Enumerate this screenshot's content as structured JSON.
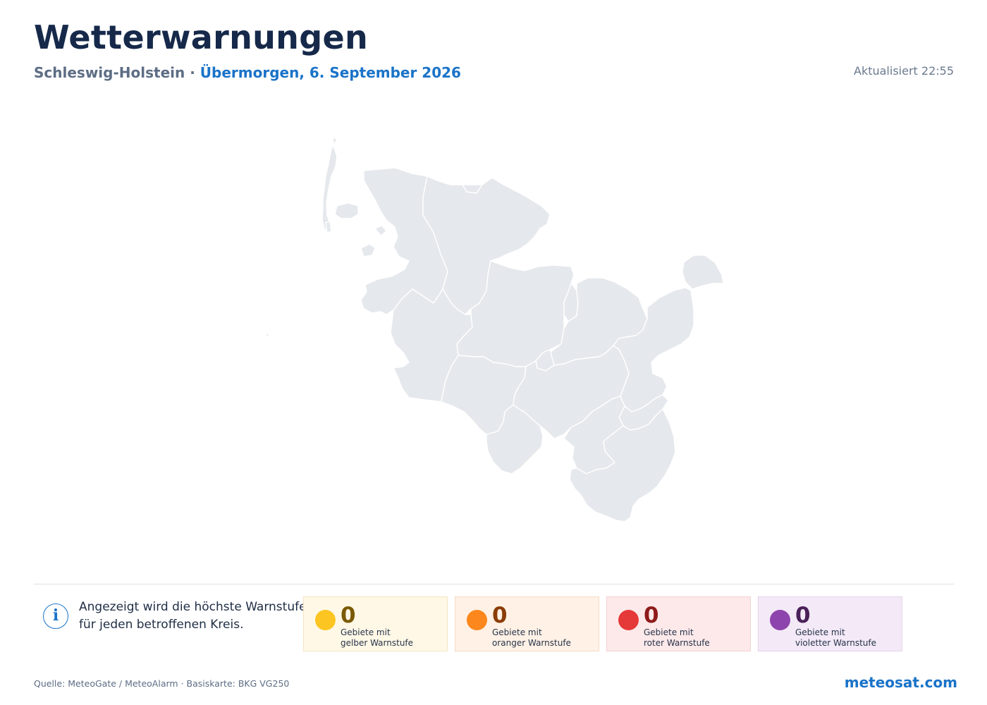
{
  "header": {
    "title": "Wetterwarnungen",
    "region": "Schleswig-Holstein",
    "separator": " · ",
    "date": "Übermorgen, 6. September 2026",
    "updated": "Aktualisiert 22:55"
  },
  "map": {
    "region_fill": "#e5e8ec",
    "border_color": "#ffffff"
  },
  "info": {
    "icon": "info-icon",
    "icon_glyph": "i",
    "line1": "Angezeigt wird die höchste Warnstufe",
    "line2": "für jeden betroffenen Kreis."
  },
  "legend": [
    {
      "level": "yellow",
      "color": "#fdc521",
      "count": "0",
      "label_line1": "Gebiete mit",
      "label_line2": "gelber Warnstufe"
    },
    {
      "level": "orange",
      "color": "#fc871d",
      "count": "0",
      "label_line1": "Gebiete mit",
      "label_line2": "oranger Warnstufe"
    },
    {
      "level": "red",
      "color": "#e53838",
      "count": "0",
      "label_line1": "Gebiete mit",
      "label_line2": "roter Warnstufe"
    },
    {
      "level": "violet",
      "color": "#8e44ad",
      "count": "0",
      "label_line1": "Gebiete mit",
      "label_line2": "violetter Warnstufe"
    }
  ],
  "footer": {
    "source": "Quelle: MeteoGate / MeteoAlarm · Basiskarte: BKG VG250",
    "brand": "meteosat.com"
  }
}
